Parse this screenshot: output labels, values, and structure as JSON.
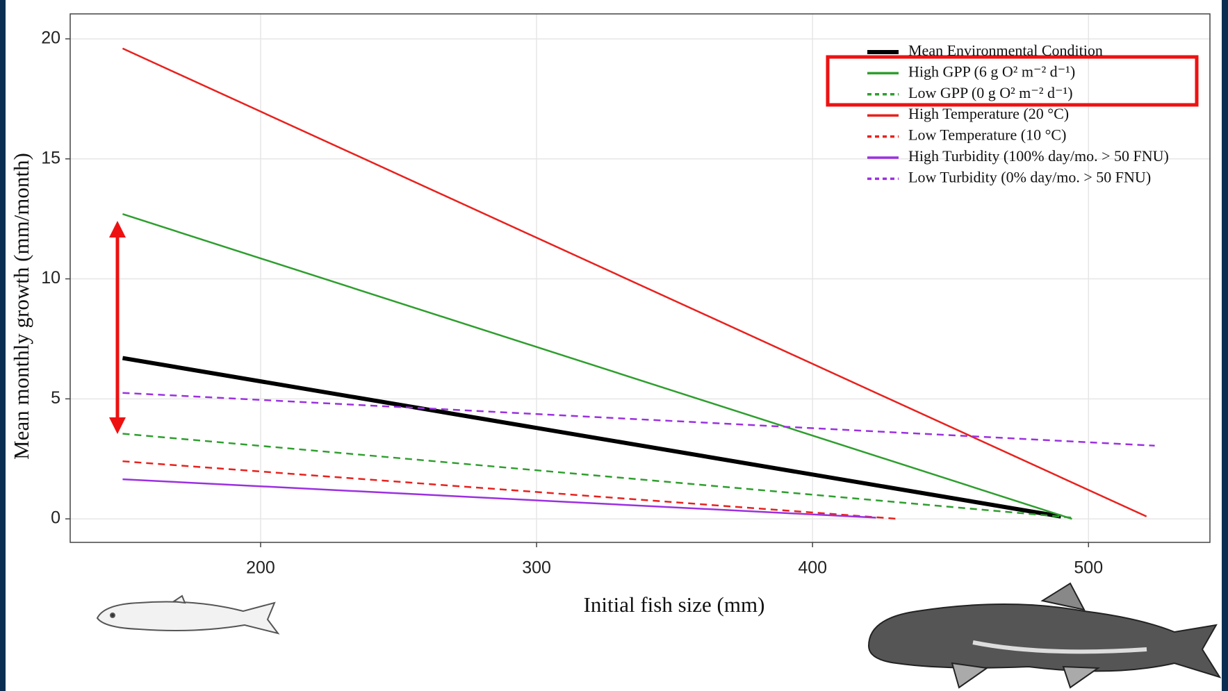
{
  "chart_data": {
    "type": "line",
    "x_label": "Initial fish size (mm)",
    "y_label": "Mean monthly growth (mm/month)",
    "xlim": [
      131,
      544
    ],
    "ylim": [
      -0.98,
      21.04
    ],
    "xticks": [
      200,
      300,
      400,
      500
    ],
    "yticks": [
      0,
      5,
      10,
      15,
      20
    ],
    "grid": true,
    "legend": "top-right",
    "series": [
      {
        "name": "Mean Environmental Condition",
        "color": "#000000",
        "dashed": false,
        "width": 6,
        "x": [
          150,
          490
        ],
        "values": [
          6.7,
          0.1
        ]
      },
      {
        "name": "High GPP (6 g O² m⁻² d⁻¹)",
        "color": "#2e9e2e",
        "dashed": false,
        "width": 2.5,
        "x": [
          150,
          494
        ],
        "values": [
          12.7,
          0
        ]
      },
      {
        "name": "Low GPP (0 g O² m⁻² d⁻¹)",
        "color": "#2e9e2e",
        "dashed": true,
        "width": 2.5,
        "x": [
          150,
          494
        ],
        "values": [
          3.55,
          0.05
        ]
      },
      {
        "name": "High Temperature (20 °C)",
        "color": "#e8211d",
        "dashed": false,
        "width": 2.5,
        "x": [
          150,
          521
        ],
        "values": [
          19.6,
          0.1
        ]
      },
      {
        "name": "Low Temperature (10 °C)",
        "color": "#e8211d",
        "dashed": true,
        "width": 2.5,
        "x": [
          150,
          431
        ],
        "values": [
          2.4,
          0
        ]
      },
      {
        "name": "High Turbidity (100% day/mo. > 50 FNU)",
        "color": "#9b30e0",
        "dashed": false,
        "width": 2.5,
        "x": [
          150,
          423
        ],
        "values": [
          1.65,
          0.05
        ]
      },
      {
        "name": "Low Turbidity (0% day/mo. > 50 FNU)",
        "color": "#9b30e0",
        "dashed": true,
        "width": 2.5,
        "x": [
          150,
          524
        ],
        "values": [
          5.25,
          3.05
        ]
      }
    ]
  }
}
